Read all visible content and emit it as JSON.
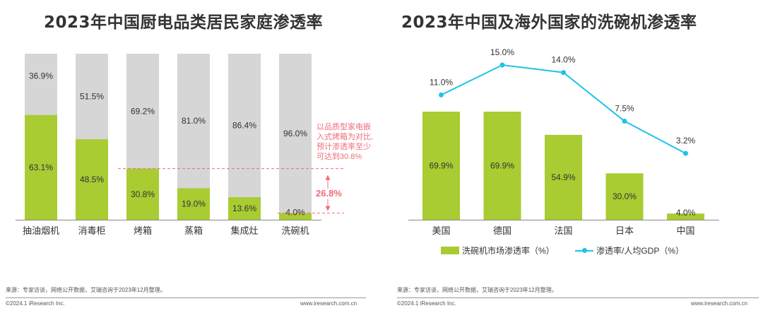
{
  "colors": {
    "green": "#a8cc32",
    "gray": "#d6d6d6",
    "cyan": "#1ec3e8",
    "annotation": "#ee6e7a"
  },
  "left": {
    "title": "2023年中国厨电品类居民家庭渗透率",
    "annotation": {
      "lines": [
        "以品质型家电嵌",
        "入式烤箱为对比,",
        "预计渗透率至少",
        "可达到30.8%"
      ],
      "difference": "26.8%"
    },
    "source": "来源：专家访谈，网络公开数据，艾瑞咨询于2023年12月整理。",
    "copyright": "©2024.1 iResearch Inc.",
    "website": "www.iresearch.com.cn"
  },
  "right": {
    "title": "2023年中国及海外国家的洗碗机渗透率",
    "legend": {
      "bar": "洗碗机市场渗透率（%）",
      "line": "渗透率/人均GDP（%）"
    },
    "source": "来源：专家访谈，网络公开数据，艾瑞咨询于2023年12月整理。",
    "copyright": "©2024.1 iResearch Inc.",
    "website": "www.iresearch.com.cn"
  },
  "chart_data": [
    {
      "type": "bar",
      "stacked": true,
      "title": "2023年中国厨电品类居民家庭渗透率",
      "categories": [
        "抽油烟机",
        "消毒柜",
        "烤箱",
        "蒸箱",
        "集成灶",
        "洗碗机"
      ],
      "series": [
        {
          "name": "渗透率",
          "color": "#a8cc32",
          "values": [
            63.1,
            48.5,
            30.8,
            19.0,
            13.6,
            4.0
          ],
          "labels": [
            "63.1%",
            "48.5%",
            "30.8%",
            "19.0%",
            "13.6%",
            "4.0%"
          ]
        },
        {
          "name": "未渗透",
          "color": "#d6d6d6",
          "values": [
            36.9,
            51.5,
            69.2,
            81.0,
            86.4,
            96.0
          ],
          "labels": [
            "36.9%",
            "51.5%",
            "69.2%",
            "81.0%",
            "86.4%",
            "96.0%"
          ]
        }
      ],
      "ylim": [
        0,
        100
      ],
      "reference_lines": [
        30.8,
        4.0
      ]
    },
    {
      "type": "bar+line",
      "title": "2023年中国及海外国家的洗碗机渗透率",
      "categories": [
        "美国",
        "德国",
        "法国",
        "日本",
        "中国"
      ],
      "series": [
        {
          "name": "洗碗机市场渗透率（%）",
          "type": "bar",
          "color": "#a8cc32",
          "values": [
            69.9,
            69.9,
            54.9,
            30.0,
            4.0
          ],
          "labels": [
            "69.9%",
            "69.9%",
            "54.9%",
            "30.0%",
            "4.0%"
          ]
        },
        {
          "name": "渗透率/人均GDP（%）",
          "type": "line",
          "color": "#1ec3e8",
          "values": [
            11.0,
            15.0,
            14.0,
            7.5,
            3.2
          ],
          "labels": [
            "11.0%",
            "15.0%",
            "14.0%",
            "7.5%",
            "3.2%"
          ]
        }
      ]
    }
  ]
}
